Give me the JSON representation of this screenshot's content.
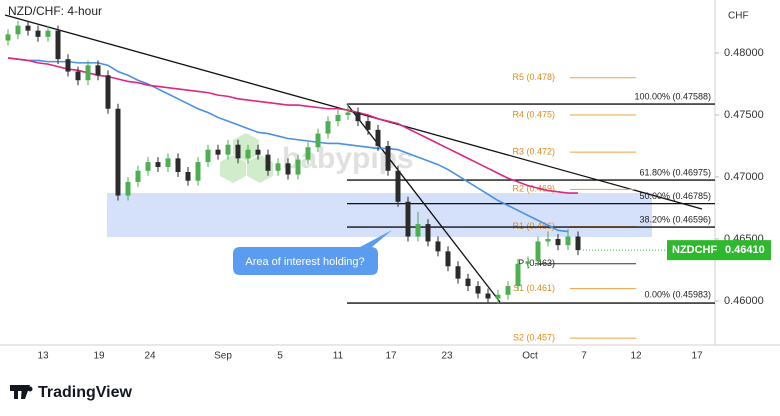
{
  "chart_data": {
    "type": "candlestick",
    "title": "NZD/CHF: 4-hour",
    "y_unit": "CHF",
    "watermark": "babypips",
    "footer": "TradingView",
    "ylim": [
      0.45645,
      0.48427
    ],
    "yticks": [
      {
        "value": 0.48,
        "label": "0.48000"
      },
      {
        "value": 0.475,
        "label": "0.47500"
      },
      {
        "value": 0.47,
        "label": "0.47000"
      },
      {
        "value": 0.465,
        "label": "0.46500"
      },
      {
        "value": 0.46,
        "label": "0.46000"
      }
    ],
    "x_tick_labels": [
      "13",
      "19",
      "24",
      "Sep",
      "5",
      "11",
      "17",
      "23",
      "Oct",
      "7",
      "12",
      "17"
    ],
    "up_color": "#4caf50",
    "down_color": "#2b2b2b",
    "candles": [
      [
        0.481,
        0.4819,
        0.4806,
        0.4815
      ],
      [
        0.4815,
        0.4826,
        0.4811,
        0.4822
      ],
      [
        0.4822,
        0.4826,
        0.4814,
        0.4818
      ],
      [
        0.4818,
        0.4822,
        0.4809,
        0.4813
      ],
      [
        0.4813,
        0.4822,
        0.4809,
        0.4818
      ],
      [
        0.4818,
        0.4822,
        0.4791,
        0.4795
      ],
      [
        0.4795,
        0.4799,
        0.4781,
        0.4785
      ],
      [
        0.4785,
        0.4789,
        0.4774,
        0.4778
      ],
      [
        0.4778,
        0.4794,
        0.4774,
        0.479
      ],
      [
        0.479,
        0.4794,
        0.4778,
        0.4782
      ],
      [
        0.4782,
        0.4786,
        0.4751,
        0.4755
      ],
      [
        0.4755,
        0.4759,
        0.4681,
        0.4685
      ],
      [
        0.4685,
        0.47,
        0.4681,
        0.4696
      ],
      [
        0.4696,
        0.4709,
        0.4692,
        0.4705
      ],
      [
        0.4705,
        0.4716,
        0.4701,
        0.4712
      ],
      [
        0.4712,
        0.4716,
        0.4704,
        0.4708
      ],
      [
        0.4708,
        0.4719,
        0.4704,
        0.4715
      ],
      [
        0.4715,
        0.4719,
        0.47,
        0.4704
      ],
      [
        0.4704,
        0.4708,
        0.4693,
        0.4697
      ],
      [
        0.4697,
        0.4716,
        0.4693,
        0.4712
      ],
      [
        0.4712,
        0.4726,
        0.4708,
        0.4722
      ],
      [
        0.4722,
        0.4726,
        0.4714,
        0.4718
      ],
      [
        0.4718,
        0.473,
        0.4714,
        0.4726
      ],
      [
        0.4726,
        0.473,
        0.4711,
        0.4715
      ],
      [
        0.4715,
        0.4726,
        0.4711,
        0.4722
      ],
      [
        0.4722,
        0.4726,
        0.4714,
        0.4718
      ],
      [
        0.4718,
        0.4722,
        0.4701,
        0.4705
      ],
      [
        0.4705,
        0.4715,
        0.4701,
        0.4711
      ],
      [
        0.4711,
        0.4715,
        0.4698,
        0.4702
      ],
      [
        0.4702,
        0.4718,
        0.4698,
        0.4714
      ],
      [
        0.4714,
        0.4728,
        0.471,
        0.4724
      ],
      [
        0.4724,
        0.4739,
        0.472,
        0.4735
      ],
      [
        0.4735,
        0.4749,
        0.4731,
        0.4745
      ],
      [
        0.4745,
        0.4754,
        0.4741,
        0.475
      ],
      [
        0.475,
        0.4759,
        0.4746,
        0.4752
      ],
      [
        0.4752,
        0.4756,
        0.4741,
        0.4745
      ],
      [
        0.4745,
        0.4749,
        0.4734,
        0.4738
      ],
      [
        0.4738,
        0.4742,
        0.4721,
        0.4725
      ],
      [
        0.4725,
        0.4729,
        0.4701,
        0.4705
      ],
      [
        0.4705,
        0.4709,
        0.4676,
        0.468
      ],
      [
        0.468,
        0.4684,
        0.4648,
        0.4652
      ],
      [
        0.4652,
        0.4672,
        0.4648,
        0.4662
      ],
      [
        0.4662,
        0.4666,
        0.4644,
        0.4648
      ],
      [
        0.4648,
        0.4652,
        0.4636,
        0.464
      ],
      [
        0.464,
        0.4644,
        0.4624,
        0.4628
      ],
      [
        0.4628,
        0.4632,
        0.4614,
        0.4618
      ],
      [
        0.4618,
        0.4622,
        0.4608,
        0.4612
      ],
      [
        0.4612,
        0.4616,
        0.4602,
        0.4606
      ],
      [
        0.4606,
        0.461,
        0.4598,
        0.4602
      ],
      [
        0.4602,
        0.4609,
        0.4598,
        0.4605
      ],
      [
        0.4605,
        0.4616,
        0.4601,
        0.4612
      ],
      [
        0.4612,
        0.4634,
        0.4608,
        0.463
      ],
      [
        0.463,
        0.4636,
        0.4626,
        0.4632
      ],
      [
        0.4632,
        0.4652,
        0.4628,
        0.4648
      ],
      [
        0.4648,
        0.4656,
        0.4644,
        0.465
      ],
      [
        0.465,
        0.4654,
        0.4641,
        0.4645
      ],
      [
        0.4645,
        0.4658,
        0.4641,
        0.4652
      ],
      [
        0.4652,
        0.4656,
        0.4637,
        0.4641
      ]
    ],
    "lines": [
      {
        "color": "#4a90e2",
        "values": [
          0.4796,
          0.4795,
          0.4794,
          0.4794,
          0.4793,
          0.4793,
          0.4793,
          0.4792,
          0.4792,
          0.4792,
          0.479,
          0.4785,
          0.4782,
          0.4778,
          0.4775,
          0.4771,
          0.4767,
          0.4763,
          0.4759,
          0.4755,
          0.4752,
          0.4748,
          0.4745,
          0.4742,
          0.4739,
          0.4736,
          0.4735,
          0.4733,
          0.4731,
          0.473,
          0.4729,
          0.4728,
          0.4727,
          0.4727,
          0.4726,
          0.4725,
          0.4724,
          0.4723,
          0.4723,
          0.4722,
          0.4719,
          0.4716,
          0.4713,
          0.471,
          0.4706,
          0.4701,
          0.4696,
          0.4691,
          0.4686,
          0.4681,
          0.4677,
          0.4673,
          0.4669,
          0.4665,
          0.4661,
          0.4657,
          0.4656,
          null
        ]
      },
      {
        "color": "#e0267f",
        "values": [
          0.4796,
          0.4795,
          0.4794,
          0.4792,
          0.4791,
          0.4789,
          0.4787,
          0.4786,
          0.4784,
          0.4782,
          0.4781,
          0.4779,
          0.4777,
          0.4776,
          0.4774,
          0.4773,
          0.4772,
          0.4771,
          0.477,
          0.4769,
          0.4768,
          0.4766,
          0.4765,
          0.4763,
          0.4762,
          0.4761,
          0.476,
          0.4759,
          0.4758,
          0.4758,
          0.4757,
          0.4756,
          0.4755,
          0.4755,
          0.4754,
          0.4752,
          0.475,
          0.4747,
          0.4745,
          0.4743,
          0.4739,
          0.4735,
          0.4731,
          0.4727,
          0.4723,
          0.4719,
          0.4715,
          0.4711,
          0.4707,
          0.4703,
          0.4699,
          0.4696,
          0.4693,
          0.4691,
          0.4689,
          0.4688,
          0.4687,
          0.4687
        ]
      }
    ],
    "pivots": [
      {
        "label": "R5 (0.478)",
        "value": 0.478
      },
      {
        "label": "R4 (0.475)",
        "value": 0.475
      },
      {
        "label": "R3 (0.472)",
        "value": 0.472
      },
      {
        "label": "R2 (0.469)",
        "value": 0.469
      },
      {
        "label": "R1 (0.466)",
        "value": 0.466
      },
      {
        "label": "P (0.463)",
        "value": 0.463
      },
      {
        "label": "S1 (0.461)",
        "value": 0.461
      },
      {
        "label": "S2 (0.457)",
        "value": 0.457
      }
    ],
    "fib_levels": [
      {
        "label": "100.00% (0.47588)",
        "value": 0.47588
      },
      {
        "label": "61.80% (0.46975)",
        "value": 0.46975
      },
      {
        "label": "50.00% (0.46785)",
        "value": 0.46785
      },
      {
        "label": "38.20% (0.46596)",
        "value": 0.46596
      },
      {
        "label": "0.00% (0.45983)",
        "value": 0.45983
      }
    ],
    "annotation": "Area of interest holding?",
    "price_tag": {
      "symbol": "NZDCHF",
      "price": {
        "value": 0.4641,
        "label": "0.46410"
      },
      "color": "#2eb82e"
    }
  }
}
